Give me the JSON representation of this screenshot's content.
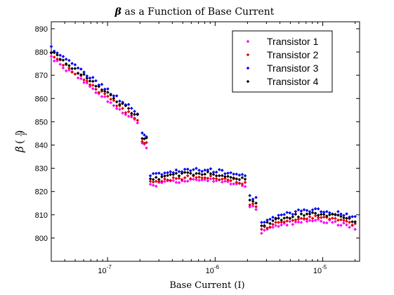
{
  "chart_data": {
    "type": "scatter",
    "title_prefix": "β",
    "title_suffix": " as a Function of Base Current",
    "xlabel": "Base Current (I)",
    "ylabel_symbol": "β",
    "ylabel_num": "I",
    "ylabel_den": "I",
    "x_scale": "log",
    "xlim": [
      3e-08,
      2.2e-05
    ],
    "ylim": [
      790,
      893
    ],
    "grid": false,
    "legend_position": "top-right",
    "x_ticks": [
      {
        "value": 1e-07,
        "mantissa": "10",
        "exp": "-7"
      },
      {
        "value": 1e-06,
        "mantissa": "10",
        "exp": "-6"
      },
      {
        "value": 1e-05,
        "mantissa": "10",
        "exp": "-5"
      }
    ],
    "y_ticks": [
      800,
      810,
      820,
      830,
      840,
      850,
      860,
      870,
      880,
      890
    ],
    "series": [
      {
        "name": "Transistor 1",
        "color": "#ff00ff",
        "offset": -2.5
      },
      {
        "name": "Transistor 2",
        "color": "#dd0000",
        "offset": -1.2
      },
      {
        "name": "Transistor 3",
        "color": "#0000ee",
        "offset": 1.8
      },
      {
        "name": "Transistor 4",
        "color": "#000000",
        "offset": 0.3
      }
    ],
    "base_curve": {
      "segments": [
        {
          "x_start": 3e-08,
          "x_end": 1.9e-07,
          "points": 30,
          "y_start": 880,
          "y_end": 852
        },
        {
          "x_start": 2.1e-07,
          "x_end": 2.3e-07,
          "points": 3,
          "y_start": 843,
          "y_end": 842
        },
        {
          "x_start": 2.5e-07,
          "x_end": 1.9e-06,
          "points": 34,
          "y_start": 825,
          "y_end": 825,
          "bulge": 2.5
        },
        {
          "x_start": 2.1e-06,
          "x_end": 2.4e-06,
          "points": 3,
          "y_start": 816,
          "y_end": 815
        },
        {
          "x_start": 2.7e-06,
          "x_end": 2e-05,
          "points": 34,
          "y_start": 805,
          "y_end": 807,
          "bulge": 4
        }
      ]
    }
  }
}
